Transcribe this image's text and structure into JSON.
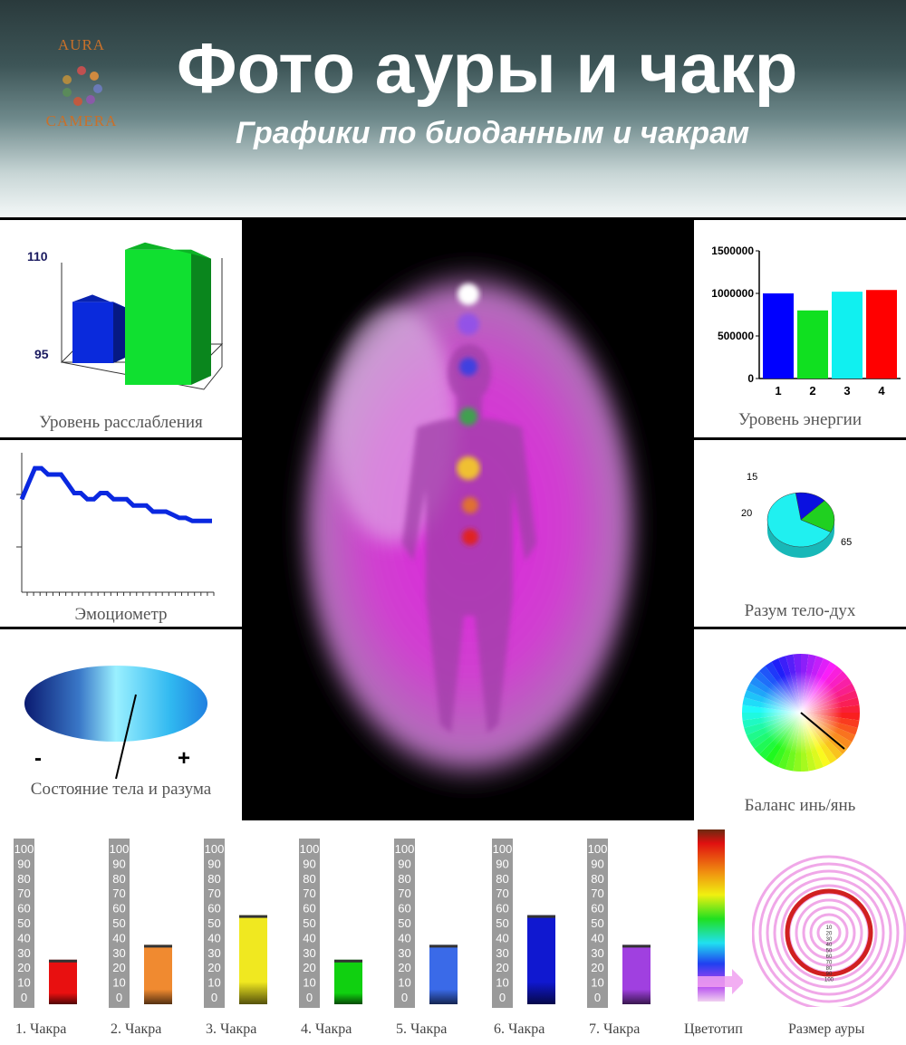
{
  "header": {
    "logo_top": "AURA",
    "logo_bottom": "CAMERA",
    "title": "Фото  ауры и чакр",
    "subtitle": "Графики по биоданным и чакрам"
  },
  "panels": {
    "relaxation": {
      "label": "Уровень расслабления"
    },
    "emotiometer": {
      "label": "Эмоциометр"
    },
    "body_mind": {
      "label": "Состояние тела и разума",
      "minus": "-",
      "plus": "+"
    },
    "energy": {
      "label": "Уровень энергии"
    },
    "mind_body_spirit": {
      "label": "Разум тело-дух"
    },
    "yin_yang": {
      "label": "Баланс инь/янь"
    }
  },
  "bottom": {
    "color_type_label": "Цветотип",
    "aura_size_label": "Размер ауры",
    "aura_size_scale": [
      "10",
      "20",
      "30",
      "40",
      "50",
      "60",
      "70",
      "80",
      "90",
      "100"
    ]
  },
  "chart_data": [
    {
      "id": "relaxation",
      "type": "bar",
      "title": "Уровень расслабления",
      "categories": [
        "1",
        "2"
      ],
      "values": [
        103,
        111
      ],
      "colors": [
        "#0a2adc",
        "#10e030"
      ],
      "yticks": [
        "110",
        "95"
      ]
    },
    {
      "id": "emotiometer",
      "type": "line",
      "title": "Эмоциометр",
      "x": [
        1,
        2,
        3,
        4,
        5,
        6,
        7,
        8,
        9,
        10,
        11,
        12,
        13,
        14,
        15,
        16,
        17,
        18,
        19,
        20,
        21,
        22,
        23,
        24,
        25,
        26,
        27,
        28,
        29,
        30
      ],
      "y": [
        40,
        45,
        50,
        50,
        48,
        48,
        48,
        45,
        42,
        42,
        40,
        40,
        42,
        42,
        40,
        40,
        40,
        38,
        38,
        38,
        36,
        36,
        36,
        35,
        34,
        34,
        33,
        33,
        33,
        33
      ],
      "ylim": [
        10,
        55
      ],
      "color": "#0a28e0"
    },
    {
      "id": "energy",
      "type": "bar",
      "title": "Уровень энергии",
      "categories": [
        "1",
        "2",
        "3",
        "4"
      ],
      "values": [
        1000000,
        800000,
        1020000,
        1040000
      ],
      "colors": [
        "#0000ff",
        "#10e020",
        "#10f0f0",
        "#ff0000"
      ],
      "yticks": [
        "1500000",
        "1000000",
        "500000",
        "0"
      ],
      "ylim": [
        0,
        1500000
      ]
    },
    {
      "id": "mind_body_spirit",
      "type": "pie",
      "title": "Разум тело-дух",
      "values": [
        15,
        20,
        65
      ],
      "labels": [
        "15",
        "20",
        "65"
      ],
      "colors": [
        "#0a10e0",
        "#20d020",
        "#20f0f0"
      ]
    },
    {
      "id": "chakras",
      "type": "bar",
      "categories": [
        "1. Чакра",
        "2. Чакра",
        "3. Чакра",
        "4. Чакра",
        "5. Чакра",
        "6. Чакра",
        "7. Чакра"
      ],
      "values": [
        30,
        40,
        60,
        30,
        40,
        60,
        40
      ],
      "colors": [
        "#e81010",
        "#f08a30",
        "#f0e820",
        "#10d010",
        "#3a6ae8",
        "#1018d0",
        "#a040e0"
      ],
      "ylim": [
        0,
        100
      ],
      "yticks": [
        "100",
        "90",
        "80",
        "70",
        "60",
        "50",
        "40",
        "30",
        "20",
        "10",
        "0"
      ]
    }
  ]
}
